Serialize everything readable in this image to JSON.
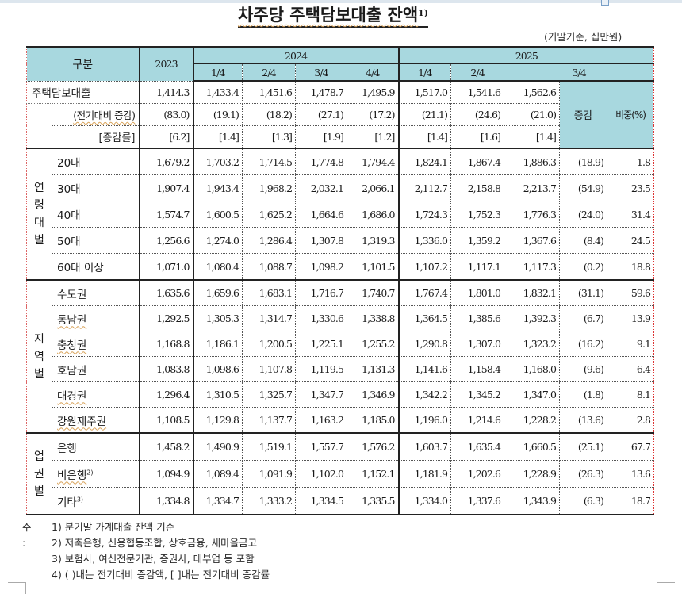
{
  "title": "차주당 주택담보대출 잔액",
  "title_footnote": "1)",
  "unit_note": "(기말기준, 십만원)",
  "header": {
    "category": "구분",
    "year_2023": "2023",
    "year_2024": "2024",
    "year_2025": "2025",
    "q2024": [
      "1/4",
      "2/4",
      "3/4",
      "4/4"
    ],
    "q2025": [
      "1/4",
      "2/4",
      "3/4"
    ],
    "change": "증감",
    "share": "비중(%)"
  },
  "total": {
    "label": "주택담보대출",
    "values": [
      "1,414.3",
      "1,433.4",
      "1,451.6",
      "1,478.7",
      "1,495.9",
      "1,517.0",
      "1,541.6",
      "1,562.6"
    ],
    "change_label": "(전기대비 증감)",
    "change_values": [
      "(83.0)",
      "(19.1)",
      "(18.2)",
      "(27.1)",
      "(17.2)",
      "(21.1)",
      "(24.6)",
      "(21.0)"
    ],
    "rate_label": "[증감률]",
    "rate_values": [
      "[6.2]",
      "[1.4]",
      "[1.3]",
      "[1.9]",
      "[1.2]",
      "[1.4]",
      "[1.6]",
      "[1.4]"
    ]
  },
  "groups": [
    {
      "label": "연\n령\n대\n별",
      "rows": [
        {
          "label": "20대",
          "values": [
            "1,679.2",
            "1,703.2",
            "1,714.5",
            "1,774.8",
            "1,794.4",
            "1,824.1",
            "1,867.4",
            "1,886.3"
          ],
          "change": "(18.9)",
          "share": "1.8"
        },
        {
          "label": "30대",
          "values": [
            "1,907.4",
            "1,943.4",
            "1,968.2",
            "2,032.1",
            "2,066.1",
            "2,112.7",
            "2,158.8",
            "2,213.7"
          ],
          "change": "(54.9)",
          "share": "23.5"
        },
        {
          "label": "40대",
          "values": [
            "1,574.7",
            "1,600.5",
            "1,625.2",
            "1,664.6",
            "1,686.0",
            "1,724.3",
            "1,752.3",
            "1,776.3"
          ],
          "change": "(24.0)",
          "share": "31.4"
        },
        {
          "label": "50대",
          "values": [
            "1,256.6",
            "1,274.0",
            "1,286.4",
            "1,307.8",
            "1,319.3",
            "1,336.0",
            "1,359.2",
            "1,367.6"
          ],
          "change": "(8.4)",
          "share": "24.5"
        },
        {
          "label": "60대 이상",
          "values": [
            "1,071.0",
            "1,080.4",
            "1,088.7",
            "1,098.2",
            "1,101.5",
            "1,107.2",
            "1,117.1",
            "1,117.3"
          ],
          "change": "(0.2)",
          "share": "18.8"
        }
      ]
    },
    {
      "label": "지\n역\n별",
      "rows": [
        {
          "label": "수도권",
          "values": [
            "1,635.6",
            "1,659.6",
            "1,683.1",
            "1,716.7",
            "1,740.7",
            "1,767.4",
            "1,801.0",
            "1,832.1"
          ],
          "change": "(31.1)",
          "share": "59.6"
        },
        {
          "label": "동남권",
          "values": [
            "1,292.5",
            "1,305.3",
            "1,314.7",
            "1,330.6",
            "1,338.8",
            "1,364.5",
            "1,385.6",
            "1,392.3"
          ],
          "change": "(6.7)",
          "share": "13.9"
        },
        {
          "label": "충청권",
          "values": [
            "1,168.8",
            "1,186.1",
            "1,200.5",
            "1,225.1",
            "1,255.2",
            "1,290.8",
            "1,307.0",
            "1,323.2"
          ],
          "change": "(16.2)",
          "share": "9.1"
        },
        {
          "label": "호남권",
          "values": [
            "1,083.8",
            "1,098.6",
            "1,107.8",
            "1,119.5",
            "1,131.3",
            "1,141.6",
            "1,158.4",
            "1,168.0"
          ],
          "change": "(9.6)",
          "share": "6.4"
        },
        {
          "label": "대경권",
          "values": [
            "1,296.4",
            "1,310.5",
            "1,325.7",
            "1,347.7",
            "1,346.9",
            "1,342.2",
            "1,345.2",
            "1,347.0"
          ],
          "change": "(1.8)",
          "share": "8.1"
        },
        {
          "label": "강원제주권",
          "values": [
            "1,108.5",
            "1,129.8",
            "1,137.7",
            "1,163.2",
            "1,185.0",
            "1,196.0",
            "1,214.6",
            "1,228.2"
          ],
          "change": "(13.6)",
          "share": "2.8"
        }
      ]
    },
    {
      "label": "업\n권\n별",
      "rows": [
        {
          "label": "은행",
          "values": [
            "1,458.2",
            "1,490.9",
            "1,519.1",
            "1,557.7",
            "1,576.2",
            "1,603.7",
            "1,635.4",
            "1,660.5"
          ],
          "change": "(25.1)",
          "share": "67.7"
        },
        {
          "label": "비은행",
          "footnote": "2)",
          "values": [
            "1,094.9",
            "1,089.4",
            "1,091.9",
            "1,102.0",
            "1,152.1",
            "1,181.9",
            "1,202.6",
            "1,228.9"
          ],
          "change": "(26.3)",
          "share": "13.6"
        },
        {
          "label": "기타",
          "footnote": "3)",
          "values": [
            "1,334.8",
            "1,334.7",
            "1,333.2",
            "1,334.5",
            "1,335.5",
            "1,334.0",
            "1,337.6",
            "1,343.9"
          ],
          "change": "(6.3)",
          "share": "18.7"
        }
      ]
    }
  ],
  "notes": {
    "prefix": "주 :",
    "items": [
      "1) 분기말 가계대출 잔액 기준",
      "2) 저축은행, 신용협동조합, 상호금융, 새마을금고",
      "3) 보험사, 여신전문기관, 증권사, 대부업 등 포함",
      "4) ( )내는 전기대비 증감액, [ ]내는 전기대비 증감률"
    ]
  }
}
